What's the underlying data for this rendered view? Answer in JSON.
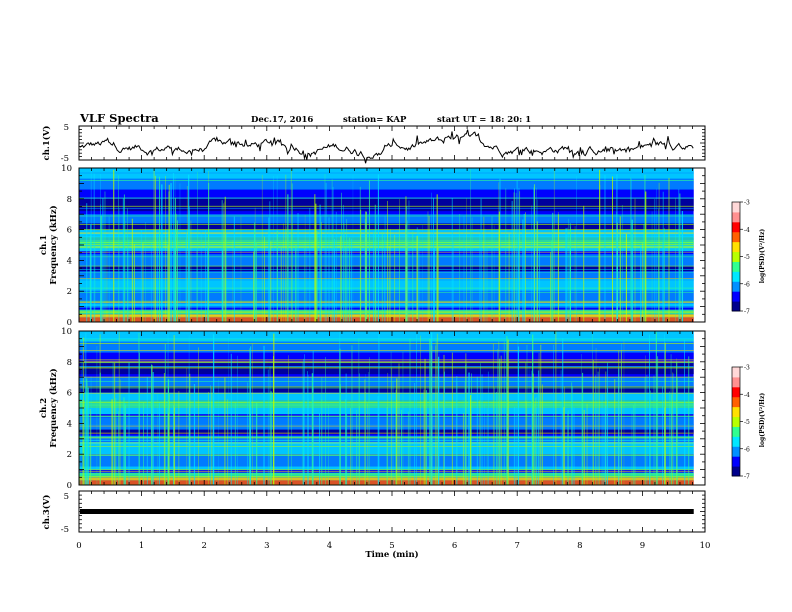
{
  "header": {
    "title": "VLF Spectra",
    "date": "Dec.17, 2016",
    "station": "station= KAP",
    "start": "start  UT =   18: 20: 1"
  },
  "chart_data": [
    {
      "type": "line",
      "name": "ch1-waveform",
      "ylabel": "ch.1(V)",
      "ylim": [
        -5,
        5
      ],
      "yticks": [
        "5",
        "-5"
      ],
      "xlim": [
        0,
        10
      ]
    },
    {
      "type": "heatmap",
      "name": "ch1-spectrogram",
      "ylabel_line1": "ch.1",
      "ylabel_line2": "Frequency (kHz)",
      "ylim": [
        0,
        10
      ],
      "yticks": [
        "0",
        "2",
        "4",
        "6",
        "8",
        "10"
      ],
      "xlim": [
        0,
        10
      ],
      "colorbar": {
        "label": "log(PSD)(V²/Hz)",
        "range": [
          -7,
          -3
        ],
        "ticks": [
          "-3",
          "-4",
          "-5",
          "-6",
          "-7"
        ],
        "colors": [
          "#00008c",
          "#0000ff",
          "#0090ff",
          "#00e8ff",
          "#30ff90",
          "#b8ff00",
          "#ffe000",
          "#ff6000",
          "#ff0000",
          "#ff9090",
          "#ffd8d8"
        ]
      }
    },
    {
      "type": "heatmap",
      "name": "ch2-spectrogram",
      "ylabel_line1": "ch.2",
      "ylabel_line2": "Frequency (kHz)",
      "ylim": [
        0,
        10
      ],
      "yticks": [
        "0",
        "2",
        "4",
        "6",
        "8",
        "10"
      ],
      "xlim": [
        0,
        10
      ],
      "colorbar": {
        "label": "log(PSD)(V²/Hz)",
        "range": [
          -7,
          -3
        ],
        "ticks": [
          "-3",
          "-4",
          "-5",
          "-6",
          "-7"
        ],
        "colors": [
          "#00008c",
          "#0000ff",
          "#0090ff",
          "#00e8ff",
          "#30ff90",
          "#b8ff00",
          "#ffe000",
          "#ff6000",
          "#ff0000",
          "#ff9090",
          "#ffd8d8"
        ]
      }
    },
    {
      "type": "line",
      "name": "ch3-waveform",
      "ylabel": "ch.3(V)",
      "ylim": [
        -5,
        5
      ],
      "yticks": [
        "5",
        "-5"
      ],
      "xlim": [
        0,
        10
      ],
      "xlabel": "Time  (min)",
      "xticks": [
        "0",
        "1",
        "2",
        "3",
        "4",
        "5",
        "6",
        "7",
        "8",
        "9",
        "10"
      ],
      "data_end_min": 9.82,
      "constant_value": 0
    }
  ]
}
